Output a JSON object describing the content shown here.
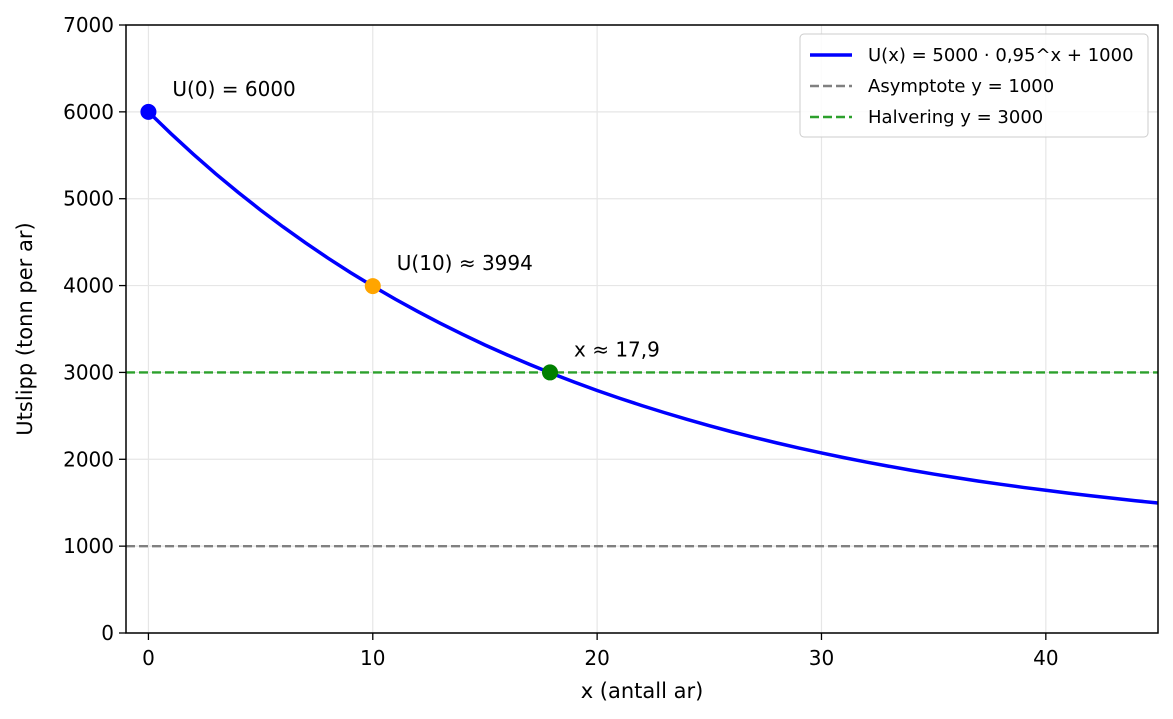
{
  "chart_data": {
    "type": "line",
    "xlabel": "x (antall ar)",
    "ylabel": "Utslipp (tonn per ar)",
    "xlim": [
      -1,
      45
    ],
    "ylim": [
      0,
      7000
    ],
    "xticks": [
      0,
      10,
      20,
      30,
      40
    ],
    "yticks": [
      0,
      1000,
      2000,
      3000,
      4000,
      5000,
      6000,
      7000
    ],
    "grid": true,
    "legend_position": "top-right",
    "series": [
      {
        "name": "U(x) = 5000 · 0,95^x + 1000",
        "color": "#0000ff",
        "style": "solid",
        "x": [
          0,
          1,
          2,
          3,
          4,
          5,
          6,
          7,
          8,
          9,
          10,
          11,
          12,
          13,
          14,
          15,
          16,
          17,
          18,
          19,
          20,
          21,
          22,
          23,
          24,
          25,
          26,
          27,
          28,
          29,
          30,
          31,
          32,
          33,
          34,
          35,
          36,
          37,
          38,
          39,
          40,
          41,
          42,
          43,
          44,
          45
        ],
        "y": [
          6000,
          5750,
          5513,
          5287,
          5073,
          4869,
          4676,
          4492,
          4317,
          4151,
          3994,
          3844,
          3702,
          3567,
          3439,
          3316,
          3201,
          3091,
          2986,
          2887,
          2792,
          2703,
          2618,
          2537,
          2460,
          2387,
          2317,
          2251,
          2189,
          2129,
          2073,
          2019,
          1968,
          1920,
          1874,
          1830,
          1789,
          1749,
          1712,
          1676,
          1643,
          1610,
          1580,
          1551,
          1523,
          1497
        ]
      },
      {
        "name": "Asymptote y = 1000",
        "color": "#808080",
        "style": "dashed",
        "x": [
          -1,
          45
        ],
        "y": [
          1000,
          1000
        ]
      },
      {
        "name": "Halvering y = 3000",
        "color": "#2ca02c",
        "style": "dashed",
        "x": [
          -1,
          45
        ],
        "y": [
          3000,
          3000
        ]
      }
    ],
    "points": [
      {
        "x": 0,
        "y": 6000,
        "color": "#0000ff",
        "label": "U(0) = 6000"
      },
      {
        "x": 10,
        "y": 3994,
        "color": "#ffa500",
        "label": "U(10) ≈ 3994"
      },
      {
        "x": 17.9,
        "y": 3000,
        "color": "#008000",
        "label": "x ≈ 17,9"
      }
    ]
  }
}
